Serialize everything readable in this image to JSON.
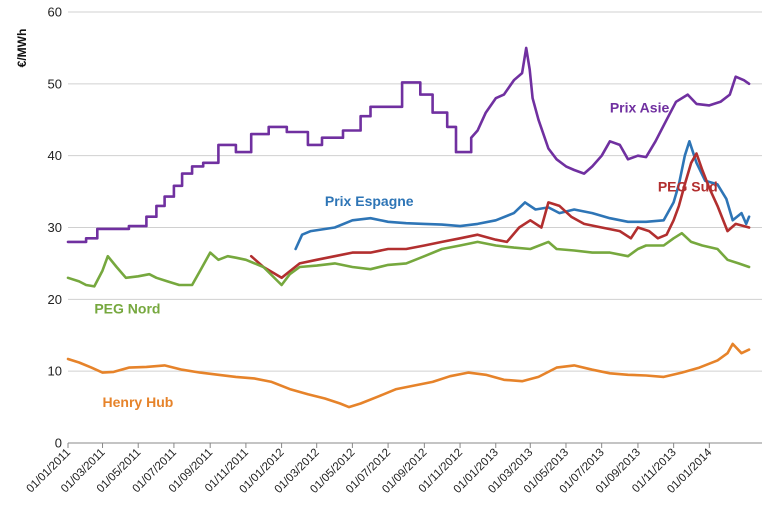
{
  "chart_data": {
    "type": "line",
    "ylabel": "€/MWh",
    "ylim": [
      0,
      60
    ],
    "yticks": [
      0,
      10,
      20,
      30,
      40,
      50,
      60
    ],
    "grid": true,
    "xlim": [
      "2011-01-01",
      "2014-04-01"
    ],
    "xticks": [
      "01/01/2011",
      "01/03/2011",
      "01/05/2011",
      "01/07/2011",
      "01/09/2011",
      "01/11/2011",
      "01/01/2012",
      "01/03/2012",
      "01/05/2012",
      "01/07/2012",
      "01/09/2012",
      "01/11/2012",
      "01/01/2013",
      "01/03/2013",
      "01/05/2013",
      "01/07/2013",
      "01/09/2013",
      "01/11/2013",
      "01/01/2014"
    ],
    "series": [
      {
        "name": "Prix Asie",
        "color": "#7030a0",
        "label_anchor": [
          "2013-07-15",
          46
        ],
        "points": [
          [
            "2011-01-01",
            28
          ],
          [
            "2011-02-01",
            28
          ],
          [
            "2011-02-01",
            28.5
          ],
          [
            "2011-02-20",
            28.5
          ],
          [
            "2011-02-20",
            29.8
          ],
          [
            "2011-04-15",
            29.8
          ],
          [
            "2011-04-15",
            30.2
          ],
          [
            "2011-05-15",
            30.2
          ],
          [
            "2011-05-15",
            31.5
          ],
          [
            "2011-06-01",
            31.5
          ],
          [
            "2011-06-01",
            33
          ],
          [
            "2011-06-15",
            33
          ],
          [
            "2011-06-15",
            34.3
          ],
          [
            "2011-07-01",
            34.3
          ],
          [
            "2011-07-01",
            35.8
          ],
          [
            "2011-07-15",
            35.8
          ],
          [
            "2011-07-15",
            37.5
          ],
          [
            "2011-08-01",
            37.5
          ],
          [
            "2011-08-01",
            38.5
          ],
          [
            "2011-08-20",
            38.5
          ],
          [
            "2011-08-20",
            39
          ],
          [
            "2011-09-15",
            39
          ],
          [
            "2011-09-15",
            41.5
          ],
          [
            "2011-10-15",
            41.5
          ],
          [
            "2011-10-15",
            40.5
          ],
          [
            "2011-11-10",
            40.5
          ],
          [
            "2011-11-10",
            43
          ],
          [
            "2011-12-10",
            43
          ],
          [
            "2011-12-10",
            44
          ],
          [
            "2012-01-10",
            44
          ],
          [
            "2012-01-10",
            43.3
          ],
          [
            "2012-02-15",
            43.3
          ],
          [
            "2012-02-15",
            41.5
          ],
          [
            "2012-03-10",
            41.5
          ],
          [
            "2012-03-10",
            42.5
          ],
          [
            "2012-04-15",
            42.5
          ],
          [
            "2012-04-15",
            43.5
          ],
          [
            "2012-05-15",
            43.5
          ],
          [
            "2012-05-15",
            45.5
          ],
          [
            "2012-06-01",
            45.5
          ],
          [
            "2012-06-01",
            46.8
          ],
          [
            "2012-07-25",
            46.8
          ],
          [
            "2012-07-25",
            50.2
          ],
          [
            "2012-08-25",
            50.2
          ],
          [
            "2012-08-25",
            48.5
          ],
          [
            "2012-09-15",
            48.5
          ],
          [
            "2012-09-15",
            46
          ],
          [
            "2012-10-10",
            46
          ],
          [
            "2012-10-10",
            44
          ],
          [
            "2012-10-25",
            44
          ],
          [
            "2012-10-25",
            40.5
          ],
          [
            "2012-11-20",
            40.5
          ],
          [
            "2012-11-20",
            42.5
          ],
          [
            "2012-12-01",
            43.5
          ],
          [
            "2012-12-15",
            46
          ],
          [
            "2013-01-01",
            48
          ],
          [
            "2013-01-15",
            48.5
          ],
          [
            "2013-02-01",
            50.5
          ],
          [
            "2013-02-15",
            51.5
          ],
          [
            "2013-02-22",
            55
          ],
          [
            "2013-02-28",
            52
          ],
          [
            "2013-03-05",
            48
          ],
          [
            "2013-03-15",
            45
          ],
          [
            "2013-04-01",
            41
          ],
          [
            "2013-04-15",
            39.5
          ],
          [
            "2013-05-01",
            38.5
          ],
          [
            "2013-05-15",
            38
          ],
          [
            "2013-06-01",
            37.5
          ],
          [
            "2013-06-15",
            38.5
          ],
          [
            "2013-07-01",
            40
          ],
          [
            "2013-07-15",
            42
          ],
          [
            "2013-08-01",
            41.5
          ],
          [
            "2013-08-15",
            39.5
          ],
          [
            "2013-09-01",
            40
          ],
          [
            "2013-09-15",
            39.8
          ],
          [
            "2013-10-01",
            42
          ],
          [
            "2013-10-20",
            45
          ],
          [
            "2013-11-05",
            47.5
          ],
          [
            "2013-11-25",
            48.5
          ],
          [
            "2013-12-10",
            47.2
          ],
          [
            "2014-01-01",
            47
          ],
          [
            "2014-01-20",
            47.5
          ],
          [
            "2014-02-05",
            48.5
          ],
          [
            "2014-02-15",
            51
          ],
          [
            "2014-03-01",
            50.5
          ],
          [
            "2014-03-10",
            50
          ]
        ]
      },
      {
        "name": "Prix Espagne",
        "color": "#2e75b6",
        "label_anchor": [
          "2012-03-15",
          33
        ],
        "points": [
          [
            "2012-01-25",
            27
          ],
          [
            "2012-02-05",
            29
          ],
          [
            "2012-02-20",
            29.5
          ],
          [
            "2012-04-01",
            30
          ],
          [
            "2012-05-01",
            31
          ],
          [
            "2012-06-01",
            31.3
          ],
          [
            "2012-07-01",
            30.8
          ],
          [
            "2012-08-01",
            30.6
          ],
          [
            "2012-09-01",
            30.5
          ],
          [
            "2012-10-01",
            30.4
          ],
          [
            "2012-11-01",
            30.2
          ],
          [
            "2012-12-01",
            30.5
          ],
          [
            "2013-01-01",
            31
          ],
          [
            "2013-02-01",
            32
          ],
          [
            "2013-02-20",
            33.5
          ],
          [
            "2013-03-10",
            32.5
          ],
          [
            "2013-04-01",
            32.8
          ],
          [
            "2013-04-20",
            32
          ],
          [
            "2013-05-15",
            32.5
          ],
          [
            "2013-06-15",
            32
          ],
          [
            "2013-07-15",
            31.3
          ],
          [
            "2013-08-15",
            30.8
          ],
          [
            "2013-09-15",
            30.8
          ],
          [
            "2013-10-15",
            31
          ],
          [
            "2013-11-01",
            33.5
          ],
          [
            "2013-11-10",
            36
          ],
          [
            "2013-11-20",
            40
          ],
          [
            "2013-11-28",
            42
          ],
          [
            "2013-12-10",
            39
          ],
          [
            "2013-12-25",
            36.5
          ],
          [
            "2014-01-15",
            36
          ],
          [
            "2014-01-30",
            34
          ],
          [
            "2014-02-10",
            31
          ],
          [
            "2014-02-25",
            32
          ],
          [
            "2014-03-05",
            30.5
          ],
          [
            "2014-03-10",
            31.5
          ]
        ]
      },
      {
        "name": "PEG Sud",
        "color": "#b22f2f",
        "label_anchor": [
          "2013-10-05",
          35
        ],
        "points": [
          [
            "2011-11-10",
            26
          ],
          [
            "2011-12-01",
            24.5
          ],
          [
            "2012-01-01",
            23
          ],
          [
            "2012-02-01",
            25
          ],
          [
            "2012-03-01",
            25.5
          ],
          [
            "2012-04-01",
            26
          ],
          [
            "2012-05-01",
            26.5
          ],
          [
            "2012-06-01",
            26.5
          ],
          [
            "2012-07-01",
            27
          ],
          [
            "2012-08-01",
            27
          ],
          [
            "2012-09-01",
            27.5
          ],
          [
            "2012-10-01",
            28
          ],
          [
            "2012-11-01",
            28.5
          ],
          [
            "2012-12-01",
            29
          ],
          [
            "2013-01-01",
            28.3
          ],
          [
            "2013-01-20",
            28
          ],
          [
            "2013-02-10",
            30
          ],
          [
            "2013-03-01",
            31
          ],
          [
            "2013-03-20",
            30
          ],
          [
            "2013-04-01",
            33.5
          ],
          [
            "2013-04-20",
            33
          ],
          [
            "2013-05-10",
            31.5
          ],
          [
            "2013-06-01",
            30.5
          ],
          [
            "2013-07-01",
            30
          ],
          [
            "2013-08-01",
            29.5
          ],
          [
            "2013-08-20",
            28.5
          ],
          [
            "2013-09-01",
            30
          ],
          [
            "2013-09-20",
            29.5
          ],
          [
            "2013-10-05",
            28.5
          ],
          [
            "2013-10-20",
            29
          ],
          [
            "2013-11-01",
            31
          ],
          [
            "2013-11-10",
            33
          ],
          [
            "2013-11-20",
            36
          ],
          [
            "2013-12-01",
            39
          ],
          [
            "2013-12-10",
            40.3
          ],
          [
            "2013-12-20",
            38
          ],
          [
            "2014-01-01",
            35.5
          ],
          [
            "2014-01-15",
            33
          ],
          [
            "2014-02-01",
            29.5
          ],
          [
            "2014-02-15",
            30.5
          ],
          [
            "2014-03-10",
            30
          ]
        ]
      },
      {
        "name": "PEG Nord",
        "color": "#76a83e",
        "label_anchor": [
          "2011-02-15",
          18
        ],
        "points": [
          [
            "2011-01-01",
            23
          ],
          [
            "2011-01-20",
            22.5
          ],
          [
            "2011-02-01",
            22
          ],
          [
            "2011-02-15",
            21.8
          ],
          [
            "2011-03-01",
            24
          ],
          [
            "2011-03-10",
            26
          ],
          [
            "2011-03-25",
            24.5
          ],
          [
            "2011-04-10",
            23
          ],
          [
            "2011-05-01",
            23.2
          ],
          [
            "2011-05-20",
            23.5
          ],
          [
            "2011-06-01",
            23
          ],
          [
            "2011-06-20",
            22.5
          ],
          [
            "2011-07-10",
            22
          ],
          [
            "2011-08-01",
            22
          ],
          [
            "2011-08-15",
            24
          ],
          [
            "2011-09-01",
            26.5
          ],
          [
            "2011-09-15",
            25.5
          ],
          [
            "2011-10-01",
            26
          ],
          [
            "2011-10-15",
            25.8
          ],
          [
            "2011-11-01",
            25.5
          ],
          [
            "2011-12-01",
            24.5
          ],
          [
            "2012-01-01",
            22
          ],
          [
            "2012-01-15",
            23.5
          ],
          [
            "2012-02-01",
            24.5
          ],
          [
            "2012-03-01",
            24.7
          ],
          [
            "2012-04-01",
            25
          ],
          [
            "2012-05-01",
            24.5
          ],
          [
            "2012-06-01",
            24.2
          ],
          [
            "2012-07-01",
            24.8
          ],
          [
            "2012-08-01",
            25
          ],
          [
            "2012-09-01",
            26
          ],
          [
            "2012-10-01",
            27
          ],
          [
            "2012-11-01",
            27.5
          ],
          [
            "2012-12-01",
            28
          ],
          [
            "2013-01-01",
            27.5
          ],
          [
            "2013-02-01",
            27.2
          ],
          [
            "2013-03-01",
            27
          ],
          [
            "2013-04-01",
            28
          ],
          [
            "2013-04-15",
            27
          ],
          [
            "2013-05-15",
            26.8
          ],
          [
            "2013-06-15",
            26.5
          ],
          [
            "2013-07-15",
            26.5
          ],
          [
            "2013-08-15",
            26
          ],
          [
            "2013-09-01",
            27
          ],
          [
            "2013-09-15",
            27.5
          ],
          [
            "2013-10-15",
            27.5
          ],
          [
            "2013-11-01",
            28.5
          ],
          [
            "2013-11-15",
            29.2
          ],
          [
            "2013-12-01",
            28
          ],
          [
            "2013-12-20",
            27.5
          ],
          [
            "2014-01-15",
            27
          ],
          [
            "2014-02-01",
            25.5
          ],
          [
            "2014-02-20",
            25
          ],
          [
            "2014-03-10",
            24.5
          ]
        ]
      },
      {
        "name": "Henry Hub",
        "color": "#e6832a",
        "label_anchor": [
          "2011-03-01",
          5
        ],
        "points": [
          [
            "2011-01-01",
            11.7
          ],
          [
            "2011-01-20",
            11.2
          ],
          [
            "2011-02-10",
            10.5
          ],
          [
            "2011-03-01",
            9.8
          ],
          [
            "2011-03-20",
            9.9
          ],
          [
            "2011-04-15",
            10.5
          ],
          [
            "2011-05-15",
            10.6
          ],
          [
            "2011-06-15",
            10.8
          ],
          [
            "2011-07-15",
            10.2
          ],
          [
            "2011-08-15",
            9.8
          ],
          [
            "2011-09-15",
            9.5
          ],
          [
            "2011-10-15",
            9.2
          ],
          [
            "2011-11-15",
            9
          ],
          [
            "2011-12-15",
            8.5
          ],
          [
            "2012-01-15",
            7.5
          ],
          [
            "2012-02-15",
            6.8
          ],
          [
            "2012-03-15",
            6.2
          ],
          [
            "2012-04-10",
            5.5
          ],
          [
            "2012-04-25",
            5
          ],
          [
            "2012-05-15",
            5.5
          ],
          [
            "2012-06-15",
            6.5
          ],
          [
            "2012-07-15",
            7.5
          ],
          [
            "2012-08-15",
            8
          ],
          [
            "2012-09-15",
            8.5
          ],
          [
            "2012-10-15",
            9.3
          ],
          [
            "2012-11-15",
            9.8
          ],
          [
            "2012-12-15",
            9.5
          ],
          [
            "2013-01-15",
            8.8
          ],
          [
            "2013-02-15",
            8.6
          ],
          [
            "2013-03-15",
            9.2
          ],
          [
            "2013-04-15",
            10.5
          ],
          [
            "2013-05-15",
            10.8
          ],
          [
            "2013-06-15",
            10.2
          ],
          [
            "2013-07-15",
            9.7
          ],
          [
            "2013-08-15",
            9.5
          ],
          [
            "2013-09-15",
            9.4
          ],
          [
            "2013-10-15",
            9.2
          ],
          [
            "2013-11-15",
            9.8
          ],
          [
            "2013-12-15",
            10.5
          ],
          [
            "2014-01-15",
            11.5
          ],
          [
            "2014-02-01",
            12.5
          ],
          [
            "2014-02-10",
            13.8
          ],
          [
            "2014-02-25",
            12.5
          ],
          [
            "2014-03-10",
            13
          ]
        ]
      }
    ]
  }
}
